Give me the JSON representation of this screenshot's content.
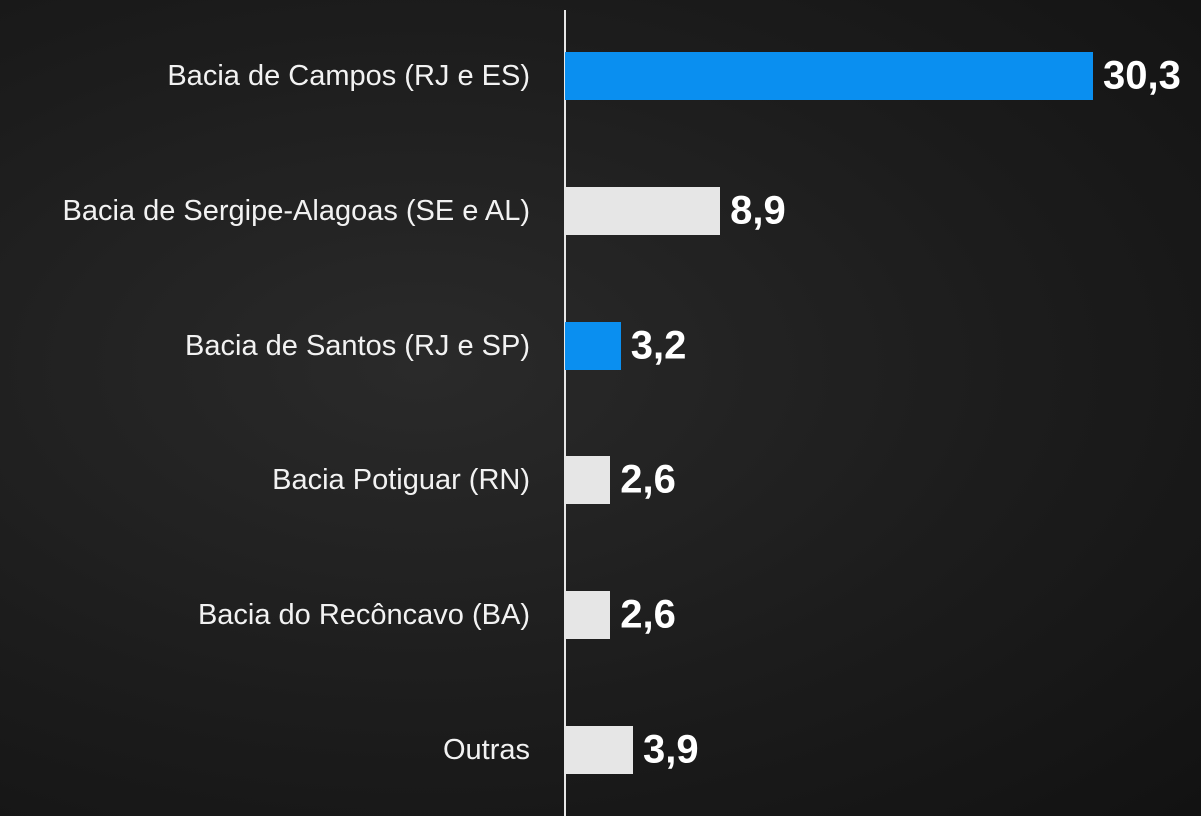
{
  "chart_data": {
    "type": "bar",
    "orientation": "horizontal",
    "categories": [
      "Bacia de Campos (RJ e ES)",
      "Bacia de Sergipe-Alagoas (SE e AL)",
      "Bacia de Santos (RJ e SP)",
      "Bacia Potiguar (RN)",
      "Bacia do Recôncavo (BA)",
      "Outras"
    ],
    "values": [
      30.3,
      8.9,
      3.2,
      2.6,
      2.6,
      3.9
    ],
    "value_labels": [
      "30,3",
      "8,9",
      "3,2",
      "2,6",
      "2,6",
      "3,9"
    ],
    "colors": [
      "#0a8ff0",
      "#e6e6e6",
      "#0a8ff0",
      "#e6e6e6",
      "#e6e6e6",
      "#e6e6e6"
    ]
  }
}
